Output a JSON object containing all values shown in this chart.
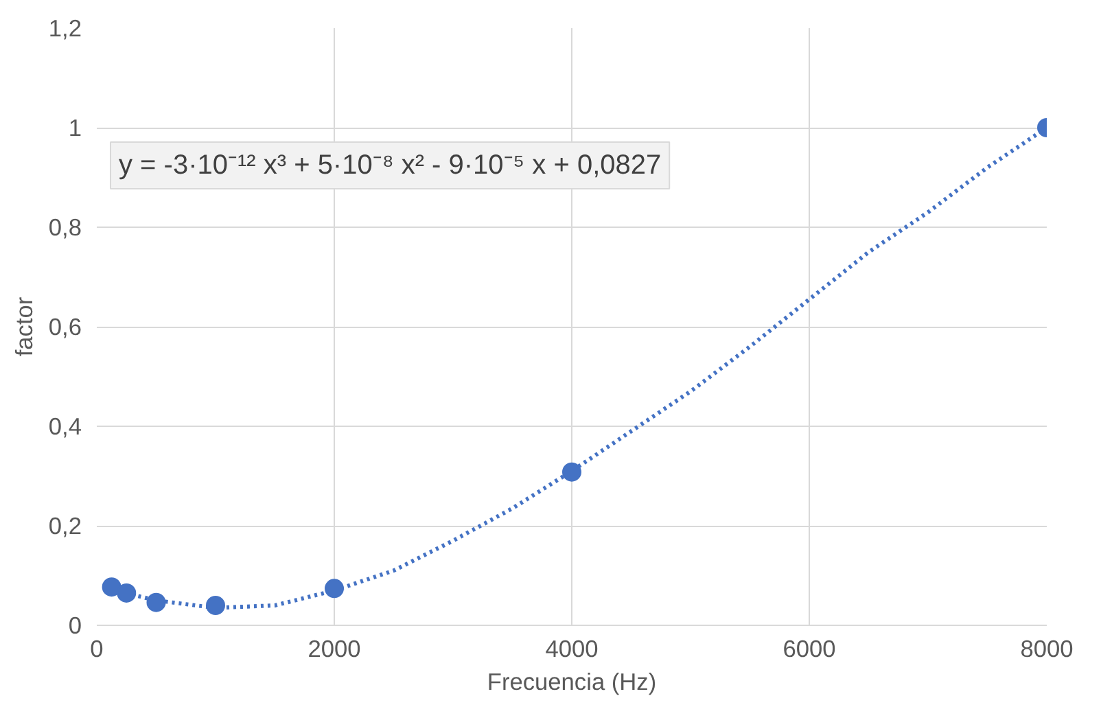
{
  "chart_data": {
    "type": "scatter",
    "xlabel": "Frecuencia (Hz)",
    "ylabel": "factor",
    "annotations": [
      "y = -3·10⁻¹² x³ + 5·10⁻⁸ x² - 9·10⁻⁵ x + 0,0827"
    ],
    "xlim": [
      0,
      8000
    ],
    "ylim": [
      0,
      1.2
    ],
    "xticks": [
      0,
      2000,
      4000,
      6000,
      8000
    ],
    "yticks": [
      0,
      {
        "value": 0.2,
        "label": "0,2"
      },
      {
        "value": 0.4,
        "label": "0,4"
      },
      {
        "value": 0.6,
        "label": "0,6"
      },
      {
        "value": 0.8,
        "label": "0,8"
      },
      1,
      {
        "value": 1.2,
        "label": "1,2"
      }
    ],
    "grid": true,
    "series": [
      {
        "type": "line",
        "color": "#4472c4",
        "marker": "none",
        "line_style": "dotted",
        "x": [
          125,
          500,
          1000,
          1500,
          2000,
          2500,
          3000,
          3500,
          4000,
          4500,
          5000,
          5500,
          6000,
          6500,
          7000,
          7500,
          8000
        ],
        "values": [
          0.072,
          0.05,
          0.035,
          0.04,
          0.07,
          0.11,
          0.17,
          0.235,
          0.31,
          0.39,
          0.47,
          0.56,
          0.655,
          0.75,
          0.83,
          0.92,
          1.0
        ]
      },
      {
        "color": "#4472c4",
        "marker": "circle",
        "x": [
          125,
          250,
          500,
          1000,
          2000,
          4000,
          8000
        ],
        "values": [
          0.077,
          0.065,
          0.046,
          0.04,
          0.074,
          0.308,
          1.0
        ]
      }
    ]
  }
}
